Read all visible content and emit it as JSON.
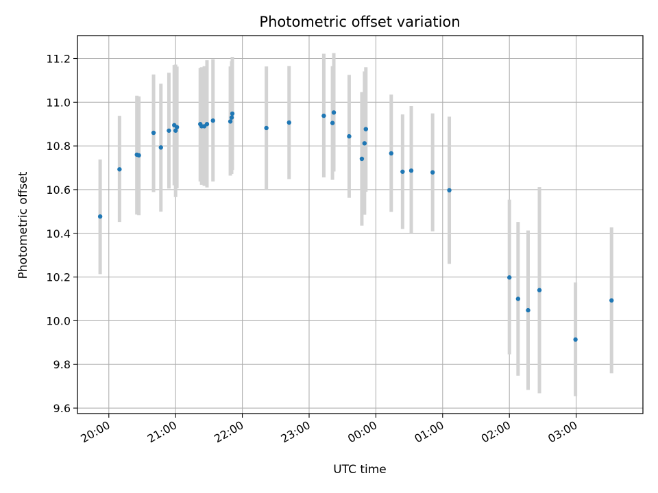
{
  "chart_data": {
    "type": "scatter",
    "title": "Photometric offset variation",
    "xlabel": "UTC time",
    "ylabel": "Photometric offset",
    "x_axis_type": "time",
    "x_tick_labels": [
      "20:00",
      "21:00",
      "22:00",
      "23:00",
      "00:00",
      "01:00",
      "02:00",
      "03:00"
    ],
    "x_tick_hours": [
      20,
      21,
      22,
      23,
      24,
      25,
      26,
      27
    ],
    "xlim_hours": [
      19.53,
      28.0
    ],
    "y_tick_labels": [
      "9.6",
      "9.8",
      "10.0",
      "10.2",
      "10.4",
      "10.6",
      "10.8",
      "11.0",
      "11.2"
    ],
    "ylim": [
      9.575,
      11.305
    ],
    "grid": true,
    "colors": {
      "marker": "#1f77b4",
      "errorbar": "#d3d3d3",
      "grid": "#b0b0b0"
    },
    "series": [
      {
        "x_hours": [
          19.87,
          20.16,
          20.42,
          20.45,
          20.67,
          20.78,
          20.9,
          20.98,
          21.0,
          21.02,
          21.37,
          21.39,
          21.43,
          21.47,
          21.56,
          21.82,
          21.84,
          21.85,
          22.36,
          22.7,
          23.22,
          23.35,
          23.37,
          23.6,
          23.79,
          23.83,
          23.85,
          24.23,
          24.4,
          24.53,
          24.85,
          25.1,
          26.0,
          26.13,
          26.28,
          26.45,
          26.99,
          27.53
        ],
        "y": [
          10.477,
          10.693,
          10.76,
          10.757,
          10.86,
          10.793,
          10.87,
          10.895,
          10.87,
          10.886,
          10.9,
          10.89,
          10.89,
          10.9,
          10.916,
          10.912,
          10.93,
          10.948,
          10.882,
          10.907,
          10.938,
          10.905,
          10.953,
          10.844,
          10.741,
          10.812,
          10.877,
          10.766,
          10.682,
          10.687,
          10.679,
          10.597,
          10.198,
          10.1,
          10.048,
          10.14,
          9.914,
          10.093
        ],
        "yerr_low": [
          10.213,
          10.452,
          10.486,
          10.483,
          10.589,
          10.499,
          10.605,
          10.62,
          10.566,
          10.606,
          10.637,
          10.622,
          10.617,
          10.61,
          10.637,
          10.664,
          10.672,
          10.69,
          10.6,
          10.648,
          10.656,
          10.645,
          10.683,
          10.563,
          10.435,
          10.485,
          10.59,
          10.498,
          10.42,
          10.396,
          10.409,
          10.26,
          9.846,
          9.748,
          9.683,
          9.668,
          9.655,
          9.759
        ],
        "yerr_high": [
          10.738,
          10.938,
          11.03,
          11.027,
          11.127,
          11.085,
          11.135,
          11.17,
          11.172,
          11.163,
          11.157,
          11.16,
          11.165,
          11.192,
          11.197,
          11.164,
          11.188,
          11.208,
          11.164,
          11.166,
          11.222,
          11.165,
          11.225,
          11.125,
          11.047,
          11.141,
          11.16,
          11.035,
          10.944,
          10.982,
          10.949,
          10.934,
          10.554,
          10.452,
          10.413,
          10.612,
          10.175,
          10.427
        ]
      }
    ]
  }
}
